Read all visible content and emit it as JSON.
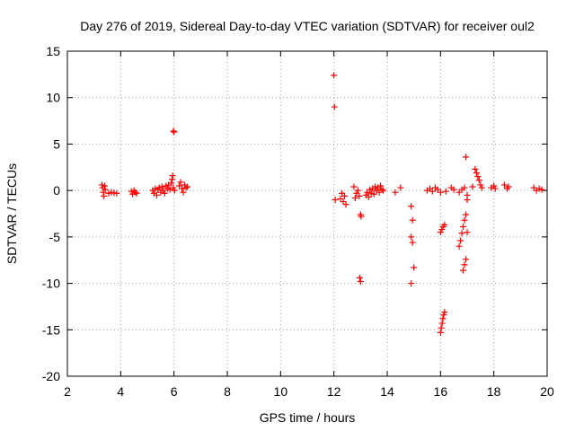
{
  "chart_data": {
    "type": "scatter",
    "title": "Day 276 of 2019, Sidereal Day-to-day VTEC variation (SDTVAR) for receiver oul2",
    "xlabel": "GPS time / hours",
    "ylabel": "SDTVAR / TECUs",
    "xlim": [
      2,
      20
    ],
    "ylim": [
      -20,
      15
    ],
    "xticks": [
      2,
      4,
      6,
      8,
      10,
      12,
      14,
      16,
      18,
      20
    ],
    "yticks": [
      15,
      10,
      5,
      0,
      -5,
      -10,
      -15,
      -20
    ],
    "xtick_labels": [
      "2",
      "4",
      "6",
      "8",
      "10",
      "12",
      "14",
      "16",
      "18",
      "20"
    ],
    "ytick_labels": [
      "15",
      "10",
      "5",
      "0",
      "-5",
      "-10",
      "-15",
      "-20"
    ],
    "grid": true,
    "marker": "+",
    "series_color": "#ff0000",
    "series": [
      {
        "name": "SDTVAR",
        "points": [
          [
            3.3,
            0.6
          ],
          [
            3.32,
            0.3
          ],
          [
            3.35,
            -0.2
          ],
          [
            3.37,
            -0.6
          ],
          [
            3.4,
            0.5
          ],
          [
            3.42,
            0.1
          ],
          [
            3.55,
            -0.3
          ],
          [
            3.65,
            -0.2
          ],
          [
            3.75,
            -0.25
          ],
          [
            3.85,
            -0.3
          ],
          [
            4.4,
            -0.1
          ],
          [
            4.45,
            -0.4
          ],
          [
            4.5,
            0.0
          ],
          [
            4.55,
            -0.2
          ],
          [
            4.6,
            -0.3
          ],
          [
            5.2,
            0.0
          ],
          [
            5.25,
            -0.3
          ],
          [
            5.3,
            0.2
          ],
          [
            5.35,
            -0.5
          ],
          [
            5.4,
            0.1
          ],
          [
            5.45,
            0.3
          ],
          [
            5.5,
            -0.2
          ],
          [
            5.55,
            0.4
          ],
          [
            5.6,
            0.0
          ],
          [
            5.65,
            -0.3
          ],
          [
            5.7,
            0.5
          ],
          [
            5.75,
            0.2
          ],
          [
            5.8,
            0.6
          ],
          [
            5.85,
            0.1
          ],
          [
            5.9,
            0.8
          ],
          [
            5.93,
            1.2
          ],
          [
            5.95,
            1.6
          ],
          [
            5.97,
            0.3
          ],
          [
            5.98,
            6.4
          ],
          [
            6.0,
            6.3
          ],
          [
            6.02,
            0.0
          ],
          [
            6.2,
            0.5
          ],
          [
            6.25,
            0.9
          ],
          [
            6.3,
            0.2
          ],
          [
            6.35,
            -0.2
          ],
          [
            6.4,
            0.6
          ],
          [
            6.45,
            0.3
          ],
          [
            6.5,
            0.4
          ],
          [
            12.0,
            12.4
          ],
          [
            12.02,
            9.0
          ],
          [
            12.05,
            -1.0
          ],
          [
            12.25,
            -0.9
          ],
          [
            12.3,
            -0.3
          ],
          [
            12.35,
            -1.2
          ],
          [
            12.4,
            -0.6
          ],
          [
            12.45,
            -1.5
          ],
          [
            12.75,
            0.4
          ],
          [
            12.8,
            -0.8
          ],
          [
            12.85,
            -0.3
          ],
          [
            12.9,
            0.0
          ],
          [
            12.95,
            -0.6
          ],
          [
            13.0,
            -2.6
          ],
          [
            13.02,
            -2.8
          ],
          [
            12.97,
            -9.4
          ],
          [
            13.0,
            -9.8
          ],
          [
            13.2,
            -0.5
          ],
          [
            13.25,
            -0.2
          ],
          [
            13.3,
            -0.7
          ],
          [
            13.35,
            0.1
          ],
          [
            13.4,
            -0.3
          ],
          [
            13.45,
            0.2
          ],
          [
            13.5,
            -0.4
          ],
          [
            13.55,
            0.4
          ],
          [
            13.6,
            0.0
          ],
          [
            13.65,
            0.3
          ],
          [
            13.7,
            -0.2
          ],
          [
            13.75,
            0.5
          ],
          [
            13.8,
            0.1
          ],
          [
            13.85,
            0.0
          ],
          [
            14.3,
            -0.2
          ],
          [
            14.5,
            0.3
          ],
          [
            14.9,
            -1.7
          ],
          [
            14.95,
            -3.2
          ],
          [
            14.9,
            -5.0
          ],
          [
            14.95,
            -5.6
          ],
          [
            15.0,
            -8.3
          ],
          [
            14.9,
            -10.0
          ],
          [
            15.5,
            0.0
          ],
          [
            15.6,
            0.2
          ],
          [
            15.7,
            -0.1
          ],
          [
            15.8,
            0.3
          ],
          [
            15.9,
            0.1
          ],
          [
            16.0,
            -0.2
          ],
          [
            16.0,
            -4.5
          ],
          [
            16.05,
            -4.2
          ],
          [
            16.1,
            -3.9
          ],
          [
            16.15,
            -3.7
          ],
          [
            16.2,
            -0.1
          ],
          [
            16.0,
            -15.3
          ],
          [
            16.03,
            -14.8
          ],
          [
            16.06,
            -14.3
          ],
          [
            16.09,
            -13.8
          ],
          [
            16.12,
            -13.4
          ],
          [
            16.15,
            -13.1
          ],
          [
            16.4,
            0.3
          ],
          [
            16.5,
            0.1
          ],
          [
            16.7,
            -6.0
          ],
          [
            16.75,
            -5.4
          ],
          [
            16.8,
            -4.6
          ],
          [
            16.85,
            -3.9
          ],
          [
            16.9,
            -3.2
          ],
          [
            16.95,
            -2.6
          ],
          [
            17.0,
            -1.0
          ],
          [
            17.0,
            -4.5
          ],
          [
            16.85,
            -8.6
          ],
          [
            16.9,
            -8.0
          ],
          [
            16.95,
            -7.4
          ],
          [
            16.7,
            -0.2
          ],
          [
            16.8,
            0.1
          ],
          [
            16.9,
            0.3
          ],
          [
            17.0,
            -0.5
          ],
          [
            16.95,
            3.6
          ],
          [
            17.2,
            0.4
          ],
          [
            17.3,
            2.3
          ],
          [
            17.35,
            1.9
          ],
          [
            17.4,
            1.5
          ],
          [
            17.45,
            1.1
          ],
          [
            17.5,
            0.6
          ],
          [
            17.55,
            0.3
          ],
          [
            17.9,
            0.3
          ],
          [
            18.0,
            0.5
          ],
          [
            18.05,
            0.2
          ],
          [
            18.4,
            0.6
          ],
          [
            18.5,
            0.2
          ],
          [
            18.55,
            0.4
          ],
          [
            19.5,
            0.3
          ],
          [
            19.6,
            0.0
          ],
          [
            19.7,
            0.2
          ],
          [
            19.8,
            0.1
          ]
        ]
      }
    ]
  }
}
